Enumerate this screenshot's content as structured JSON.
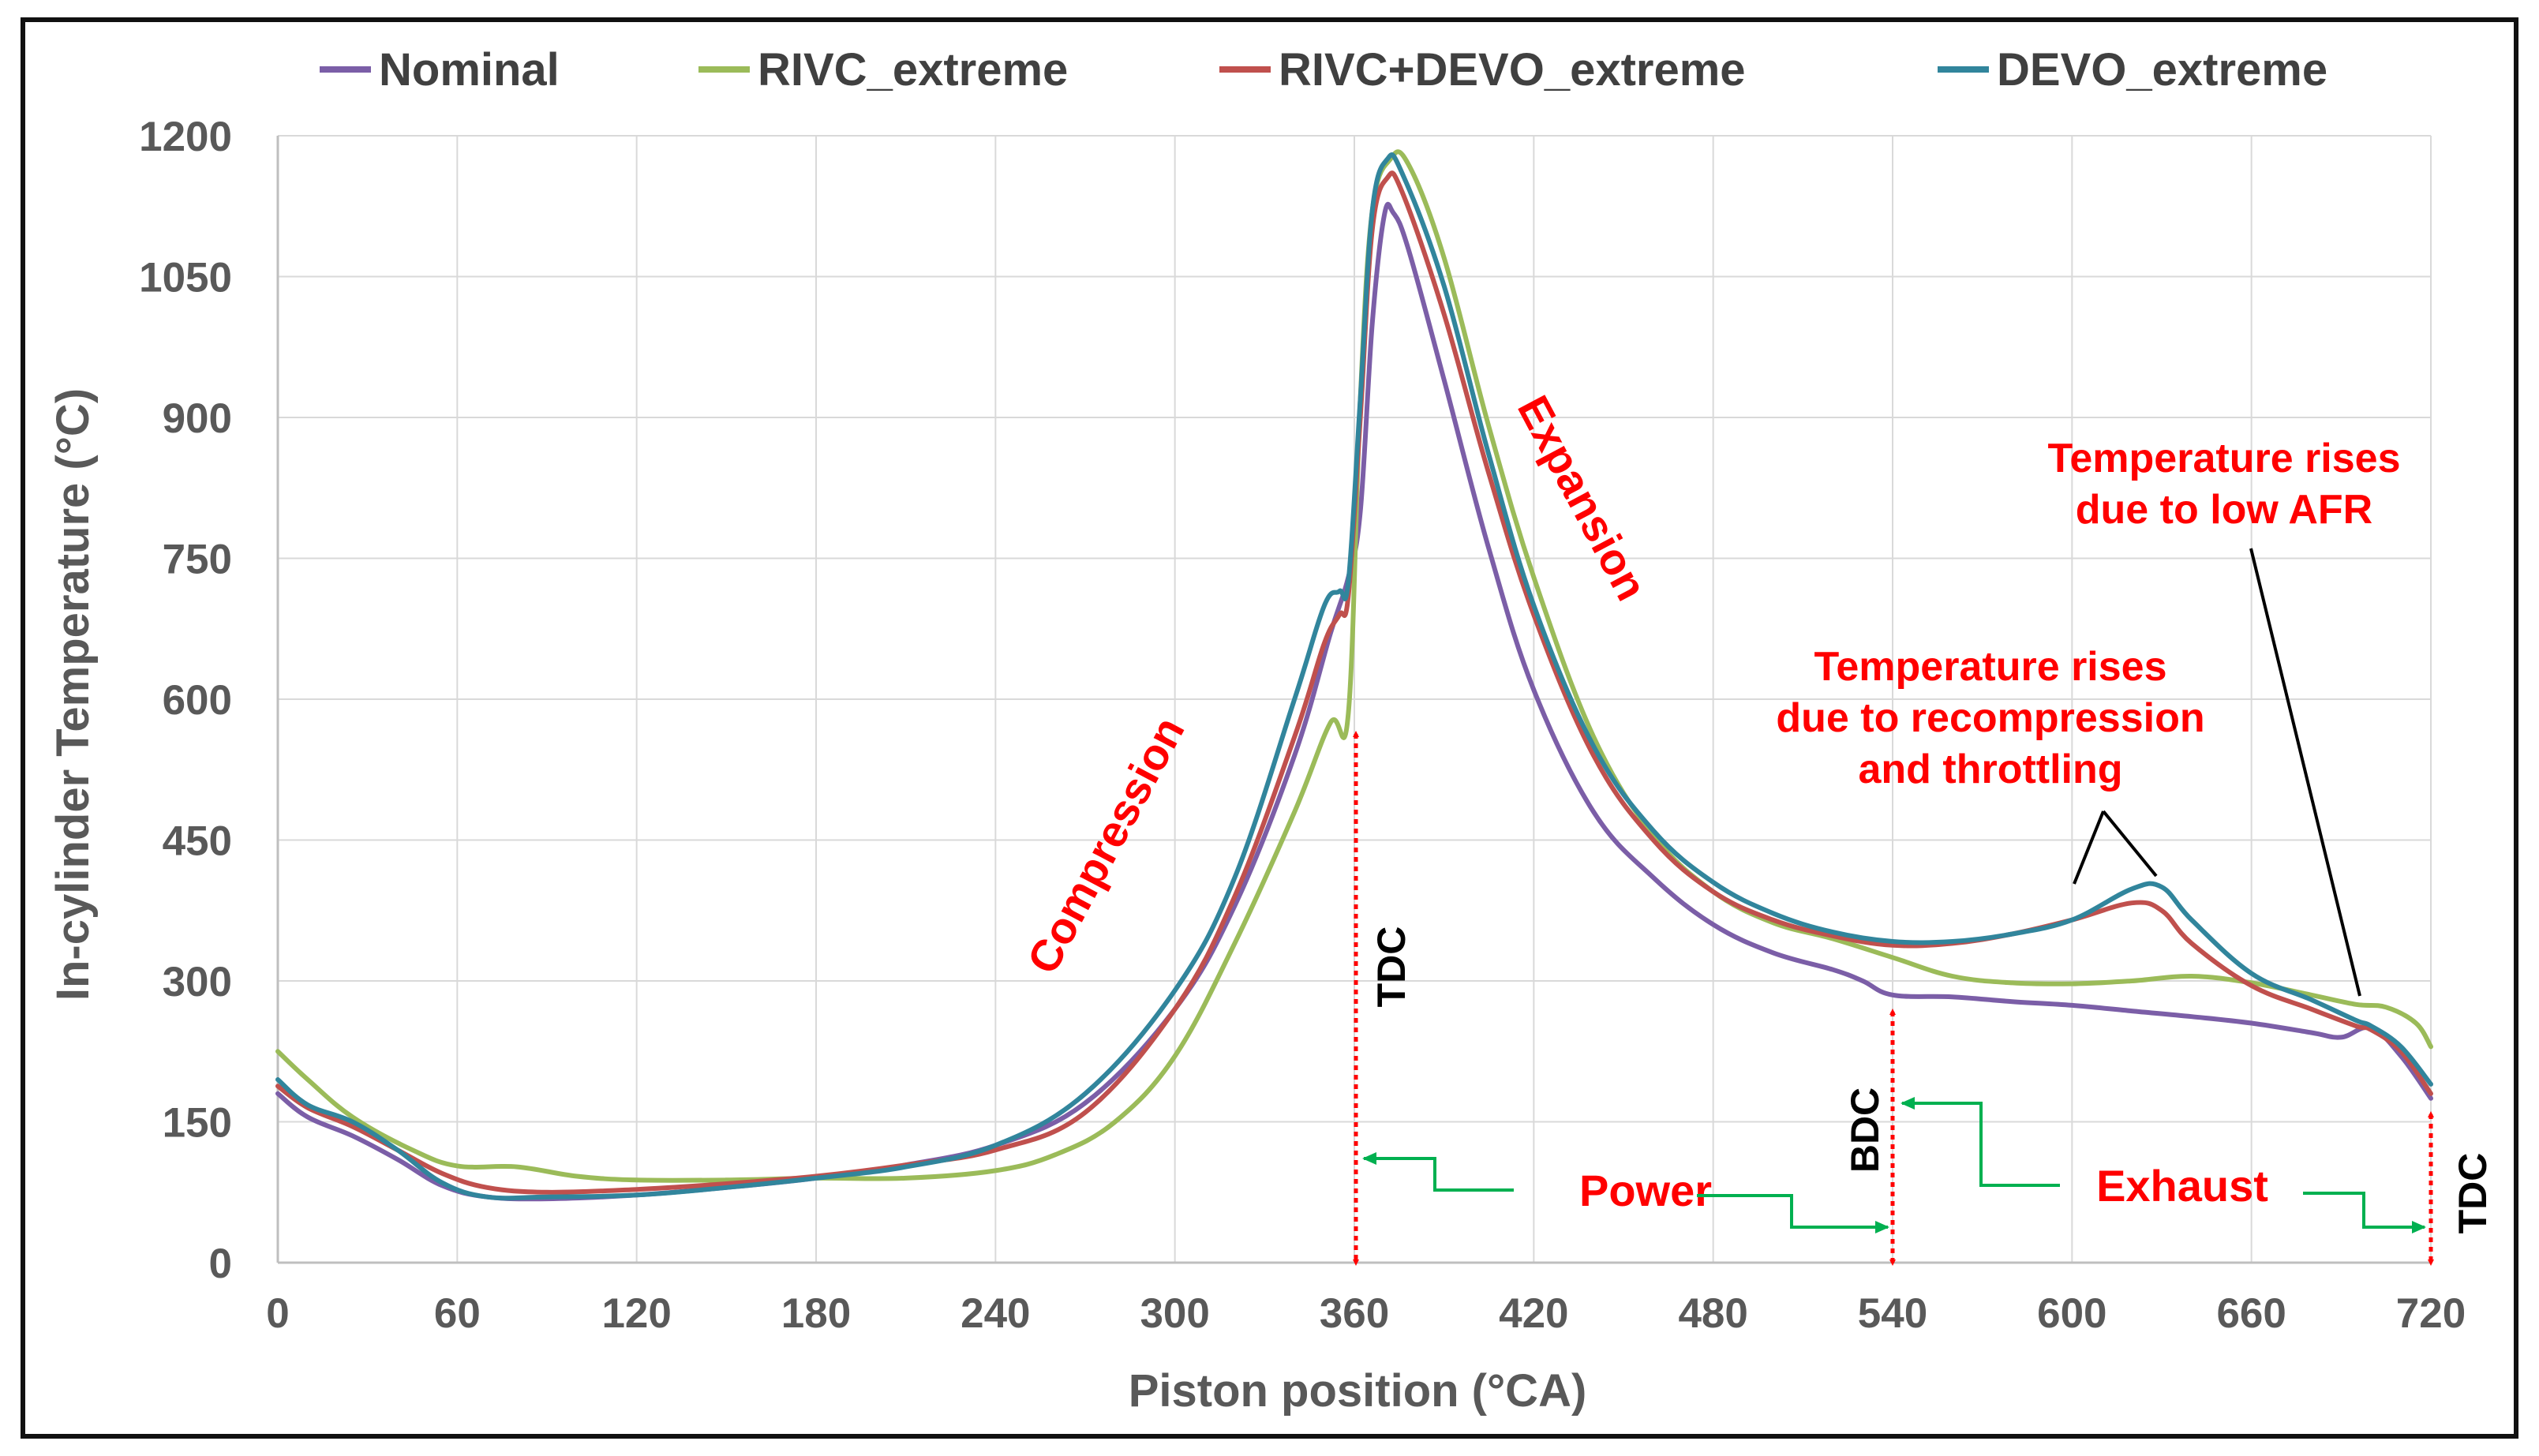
{
  "chart_data": {
    "type": "line",
    "title": "",
    "xlabel": "Piston position (°CA)",
    "ylabel": "In-cylinder Temperature  (°C)",
    "xlim": [
      0,
      720
    ],
    "ylim": [
      0,
      1200
    ],
    "x_ticks": [
      "0",
      "60",
      "120",
      "180",
      "240",
      "300",
      "360",
      "420",
      "480",
      "540",
      "600",
      "660",
      "720"
    ],
    "y_ticks": [
      "0",
      "150",
      "300",
      "450",
      "600",
      "750",
      "900",
      "1050",
      "1200"
    ],
    "grid": true,
    "legend_position": "top",
    "series": [
      {
        "name": "Nominal",
        "color": "#7b5ea7",
        "points": [
          [
            0,
            180
          ],
          [
            10,
            155
          ],
          [
            25,
            135
          ],
          [
            40,
            110
          ],
          [
            55,
            82
          ],
          [
            70,
            70
          ],
          [
            90,
            68
          ],
          [
            120,
            72
          ],
          [
            150,
            80
          ],
          [
            180,
            90
          ],
          [
            210,
            104
          ],
          [
            240,
            125
          ],
          [
            270,
            170
          ],
          [
            300,
            270
          ],
          [
            320,
            380
          ],
          [
            340,
            540
          ],
          [
            352,
            670
          ],
          [
            358,
            730
          ],
          [
            362,
            800
          ],
          [
            366,
            1000
          ],
          [
            370,
            1115
          ],
          [
            373,
            1118
          ],
          [
            378,
            1080
          ],
          [
            390,
            940
          ],
          [
            405,
            760
          ],
          [
            420,
            610
          ],
          [
            440,
            480
          ],
          [
            460,
            410
          ],
          [
            480,
            360
          ],
          [
            500,
            330
          ],
          [
            520,
            312
          ],
          [
            530,
            300
          ],
          [
            540,
            285
          ],
          [
            560,
            283
          ],
          [
            580,
            278
          ],
          [
            600,
            274
          ],
          [
            620,
            268
          ],
          [
            640,
            262
          ],
          [
            660,
            255
          ],
          [
            680,
            245
          ],
          [
            690,
            240
          ],
          [
            700,
            250
          ],
          [
            710,
            220
          ],
          [
            720,
            175
          ]
        ]
      },
      {
        "name": "RIVC_extreme",
        "color": "#9bbb59",
        "points": [
          [
            0,
            225
          ],
          [
            10,
            195
          ],
          [
            25,
            155
          ],
          [
            45,
            120
          ],
          [
            60,
            103
          ],
          [
            80,
            102
          ],
          [
            100,
            92
          ],
          [
            120,
            88
          ],
          [
            150,
            88
          ],
          [
            180,
            90
          ],
          [
            210,
            90
          ],
          [
            240,
            98
          ],
          [
            260,
            115
          ],
          [
            280,
            150
          ],
          [
            300,
            220
          ],
          [
            320,
            340
          ],
          [
            340,
            480
          ],
          [
            352,
            575
          ],
          [
            358,
            585
          ],
          [
            362,
            920
          ],
          [
            366,
            1120
          ],
          [
            372,
            1175
          ],
          [
            378,
            1170
          ],
          [
            390,
            1070
          ],
          [
            405,
            890
          ],
          [
            420,
            730
          ],
          [
            440,
            560
          ],
          [
            460,
            455
          ],
          [
            480,
            395
          ],
          [
            500,
            362
          ],
          [
            520,
            345
          ],
          [
            540,
            325
          ],
          [
            560,
            305
          ],
          [
            580,
            298
          ],
          [
            600,
            297
          ],
          [
            620,
            300
          ],
          [
            640,
            305
          ],
          [
            660,
            298
          ],
          [
            680,
            285
          ],
          [
            695,
            275
          ],
          [
            705,
            272
          ],
          [
            715,
            255
          ],
          [
            720,
            230
          ]
        ]
      },
      {
        "name": "RIVC+DEVO_extreme",
        "color": "#c0504d",
        "points": [
          [
            0,
            188
          ],
          [
            10,
            165
          ],
          [
            25,
            145
          ],
          [
            40,
            120
          ],
          [
            55,
            95
          ],
          [
            70,
            80
          ],
          [
            90,
            75
          ],
          [
            120,
            78
          ],
          [
            150,
            84
          ],
          [
            180,
            92
          ],
          [
            210,
            104
          ],
          [
            240,
            120
          ],
          [
            270,
            160
          ],
          [
            300,
            270
          ],
          [
            320,
            390
          ],
          [
            340,
            560
          ],
          [
            350,
            660
          ],
          [
            355,
            690
          ],
          [
            358,
            710
          ],
          [
            362,
            900
          ],
          [
            366,
            1100
          ],
          [
            371,
            1155
          ],
          [
            376,
            1140
          ],
          [
            390,
            1010
          ],
          [
            405,
            840
          ],
          [
            420,
            690
          ],
          [
            440,
            540
          ],
          [
            460,
            450
          ],
          [
            480,
            395
          ],
          [
            500,
            365
          ],
          [
            520,
            348
          ],
          [
            540,
            338
          ],
          [
            560,
            340
          ],
          [
            580,
            350
          ],
          [
            600,
            365
          ],
          [
            620,
            383
          ],
          [
            630,
            375
          ],
          [
            640,
            340
          ],
          [
            660,
            295
          ],
          [
            680,
            270
          ],
          [
            695,
            252
          ],
          [
            700,
            248
          ],
          [
            710,
            225
          ],
          [
            720,
            180
          ]
        ]
      },
      {
        "name": "DEVO_extreme",
        "color": "#31859c",
        "points": [
          [
            0,
            195
          ],
          [
            10,
            168
          ],
          [
            25,
            150
          ],
          [
            40,
            120
          ],
          [
            55,
            85
          ],
          [
            70,
            70
          ],
          [
            90,
            70
          ],
          [
            120,
            72
          ],
          [
            150,
            80
          ],
          [
            180,
            90
          ],
          [
            210,
            102
          ],
          [
            240,
            125
          ],
          [
            270,
            180
          ],
          [
            300,
            290
          ],
          [
            320,
            410
          ],
          [
            340,
            600
          ],
          [
            350,
            700
          ],
          [
            355,
            715
          ],
          [
            358,
            725
          ],
          [
            362,
            920
          ],
          [
            366,
            1120
          ],
          [
            371,
            1175
          ],
          [
            376,
            1160
          ],
          [
            390,
            1040
          ],
          [
            405,
            860
          ],
          [
            420,
            700
          ],
          [
            440,
            550
          ],
          [
            460,
            460
          ],
          [
            480,
            405
          ],
          [
            500,
            372
          ],
          [
            520,
            352
          ],
          [
            540,
            342
          ],
          [
            560,
            342
          ],
          [
            580,
            350
          ],
          [
            600,
            365
          ],
          [
            620,
            398
          ],
          [
            630,
            400
          ],
          [
            640,
            365
          ],
          [
            660,
            308
          ],
          [
            680,
            280
          ],
          [
            695,
            258
          ],
          [
            700,
            252
          ],
          [
            710,
            230
          ],
          [
            720,
            190
          ]
        ]
      }
    ],
    "phase_labels": {
      "compression": "Compression",
      "expansion": "Expansion",
      "power": "Power",
      "exhaust": "Exhaust"
    },
    "markers": {
      "tdc1": "TDC",
      "bdc": "BDC",
      "tdc2": "TDC"
    },
    "annotations": {
      "recompression": [
        "Temperature rises",
        "due to recompression",
        "and throttling"
      ],
      "low_afr": [
        "Temperature rises",
        "due to low AFR"
      ]
    },
    "colors": {
      "annotation_red": "#ff0000",
      "arrow_green": "#00b050",
      "grid": "#d9d9d9"
    }
  }
}
